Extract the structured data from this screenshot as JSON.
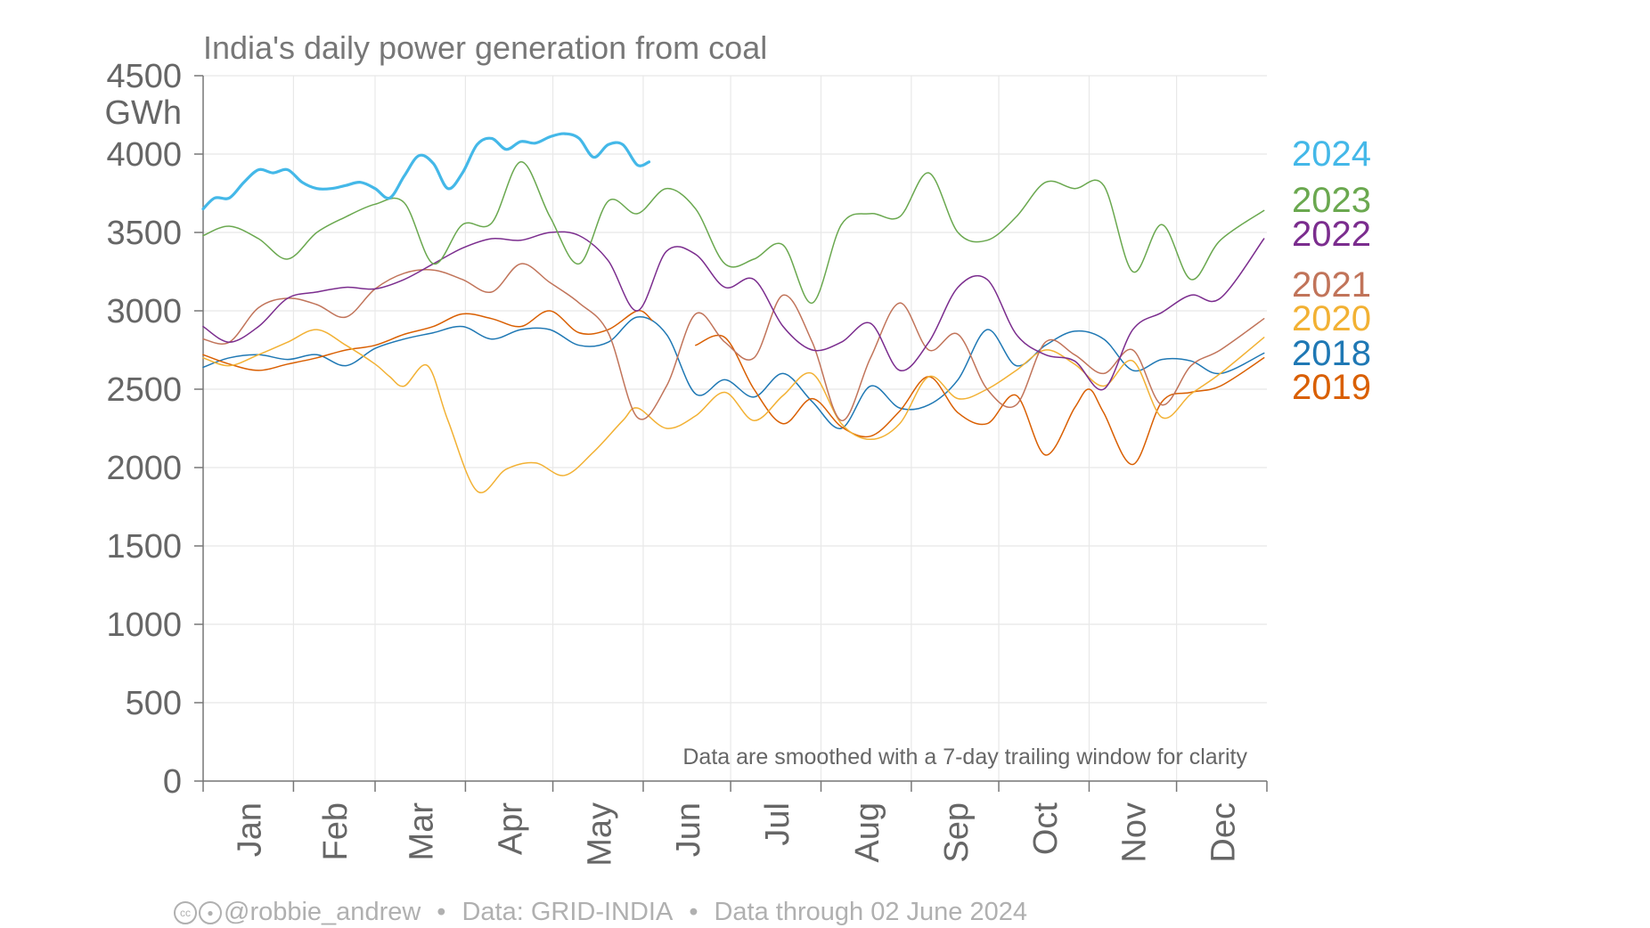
{
  "chart_data": {
    "type": "line",
    "title": "India's daily power generation from coal",
    "ylabel": "GWh",
    "ylim": [
      0,
      4500
    ],
    "yticks": [
      0,
      500,
      1000,
      1500,
      2000,
      2500,
      3000,
      3500,
      4000,
      4500
    ],
    "months": [
      "Jan",
      "Feb",
      "Mar",
      "Apr",
      "May",
      "Jun",
      "Jul",
      "Aug",
      "Sep",
      "Oct",
      "Nov",
      "Dec"
    ],
    "note": "Data are smoothed with a 7-day trailing window for clarity",
    "grid": true,
    "legend": "right",
    "series": [
      {
        "name": "2018",
        "color": "#1f78b4",
        "width": 1.5,
        "day": [
          1,
          10,
          20,
          30,
          40,
          50,
          60,
          70,
          80,
          90,
          100,
          110,
          120,
          130,
          140,
          150,
          160,
          170,
          180,
          190,
          200,
          210,
          220,
          230,
          240,
          250,
          260,
          270,
          280,
          290,
          300,
          310,
          320,
          330,
          340,
          350,
          365
        ],
        "values": [
          2640,
          2700,
          2720,
          2690,
          2720,
          2650,
          2760,
          2820,
          2860,
          2900,
          2820,
          2880,
          2880,
          2780,
          2800,
          2960,
          2850,
          2470,
          2560,
          2450,
          2600,
          2420,
          2250,
          2520,
          2380,
          2400,
          2560,
          2880,
          2650,
          2780,
          2870,
          2820,
          2620,
          2690,
          2680,
          2600,
          2730
        ]
      },
      {
        "name": "2019",
        "color": "#d95f02",
        "width": 1.5,
        "day": [
          1,
          10,
          20,
          30,
          40,
          50,
          60,
          70,
          80,
          90,
          100,
          110,
          120,
          130,
          140,
          150,
          155,
          160,
          170,
          180,
          190,
          200,
          210,
          220,
          230,
          240,
          250,
          260,
          270,
          280,
          290,
          300,
          305,
          310,
          320,
          330,
          340,
          350,
          365
        ],
        "values": [
          2720,
          2660,
          2620,
          2660,
          2700,
          2750,
          2780,
          2850,
          2900,
          2980,
          2950,
          2900,
          3000,
          2860,
          2880,
          3000,
          2940,
          null,
          2780,
          2830,
          2500,
          2280,
          2440,
          2260,
          2200,
          2360,
          2580,
          2350,
          2280,
          2460,
          2080,
          2380,
          2500,
          2350,
          2020,
          2420,
          2480,
          2520,
          2700
        ]
      },
      {
        "name": "2020",
        "color": "#f2b134",
        "width": 1.5,
        "day": [
          1,
          10,
          20,
          30,
          40,
          50,
          60,
          65,
          70,
          78,
          85,
          95,
          105,
          115,
          125,
          135,
          145,
          150,
          160,
          170,
          180,
          190,
          200,
          210,
          220,
          230,
          240,
          250,
          260,
          270,
          280,
          290,
          300,
          310,
          320,
          330,
          340,
          350,
          365
        ],
        "values": [
          2700,
          2650,
          2720,
          2800,
          2880,
          2780,
          2660,
          2580,
          2520,
          2650,
          2300,
          1850,
          1990,
          2030,
          1950,
          2100,
          2300,
          2380,
          2250,
          2330,
          2480,
          2300,
          2460,
          2600,
          2280,
          2180,
          2280,
          2580,
          2440,
          2500,
          2620,
          2750,
          2660,
          2520,
          2680,
          2320,
          2470,
          2600,
          2830
        ]
      },
      {
        "name": "2021",
        "color": "#c1745a",
        "width": 1.5,
        "day": [
          1,
          10,
          20,
          30,
          40,
          50,
          60,
          70,
          80,
          90,
          100,
          110,
          120,
          130,
          140,
          150,
          160,
          170,
          180,
          190,
          200,
          210,
          220,
          230,
          240,
          250,
          260,
          270,
          280,
          290,
          300,
          310,
          320,
          330,
          340,
          350,
          365
        ],
        "values": [
          2820,
          2800,
          3020,
          3080,
          3040,
          2960,
          3140,
          3240,
          3260,
          3200,
          3120,
          3300,
          3180,
          3050,
          2860,
          2320,
          2520,
          2980,
          2800,
          2700,
          3100,
          2800,
          2300,
          2700,
          3050,
          2750,
          2850,
          2500,
          2400,
          2800,
          2720,
          2600,
          2750,
          2400,
          2650,
          2750,
          2950
        ]
      },
      {
        "name": "2022",
        "color": "#7b2d8e",
        "width": 1.5,
        "day": [
          1,
          10,
          20,
          30,
          40,
          50,
          60,
          70,
          80,
          90,
          100,
          110,
          120,
          130,
          140,
          150,
          160,
          170,
          180,
          190,
          200,
          210,
          220,
          230,
          240,
          250,
          260,
          270,
          280,
          290,
          300,
          310,
          320,
          330,
          340,
          350,
          365
        ],
        "values": [
          2900,
          2800,
          2900,
          3080,
          3120,
          3150,
          3140,
          3200,
          3300,
          3400,
          3460,
          3450,
          3500,
          3480,
          3320,
          3000,
          3380,
          3360,
          3150,
          3200,
          2900,
          2750,
          2800,
          2920,
          2620,
          2800,
          3150,
          3200,
          2850,
          2720,
          2680,
          2500,
          2880,
          2990,
          3100,
          3080,
          3460
        ]
      },
      {
        "name": "2023",
        "color": "#6aa84f",
        "width": 1.5,
        "day": [
          1,
          10,
          20,
          30,
          40,
          50,
          60,
          70,
          80,
          90,
          100,
          110,
          120,
          130,
          140,
          150,
          160,
          170,
          180,
          190,
          200,
          210,
          220,
          230,
          240,
          250,
          260,
          270,
          280,
          290,
          300,
          310,
          320,
          330,
          340,
          350,
          365
        ],
        "values": [
          3480,
          3540,
          3460,
          3330,
          3500,
          3600,
          3680,
          3690,
          3300,
          3550,
          3560,
          3950,
          3600,
          3300,
          3700,
          3620,
          3780,
          3650,
          3300,
          3330,
          3420,
          3050,
          3550,
          3620,
          3600,
          3880,
          3500,
          3450,
          3600,
          3820,
          3780,
          3800,
          3250,
          3550,
          3200,
          3450,
          3640
        ]
      },
      {
        "name": "2024",
        "color": "#44b8e8",
        "width": 3.2,
        "day": [
          1,
          5,
          10,
          15,
          20,
          25,
          30,
          35,
          40,
          45,
          50,
          55,
          60,
          65,
          70,
          75,
          80,
          85,
          90,
          95,
          100,
          105,
          110,
          115,
          120,
          125,
          130,
          135,
          140,
          145,
          150,
          154
        ],
        "values": [
          3650,
          3720,
          3720,
          3820,
          3900,
          3880,
          3900,
          3820,
          3780,
          3780,
          3800,
          3820,
          3780,
          3720,
          3860,
          3990,
          3940,
          3780,
          3880,
          4060,
          4100,
          4030,
          4080,
          4070,
          4110,
          4130,
          4100,
          3980,
          4060,
          4060,
          3930,
          3950
        ]
      }
    ]
  },
  "footer": {
    "handle": "@robbie_andrew",
    "source": "Data: GRID-INDIA",
    "through": "Data through 02 June 2024",
    "cc_icon": "cc-icon",
    "by_icon": "attribution-icon"
  }
}
